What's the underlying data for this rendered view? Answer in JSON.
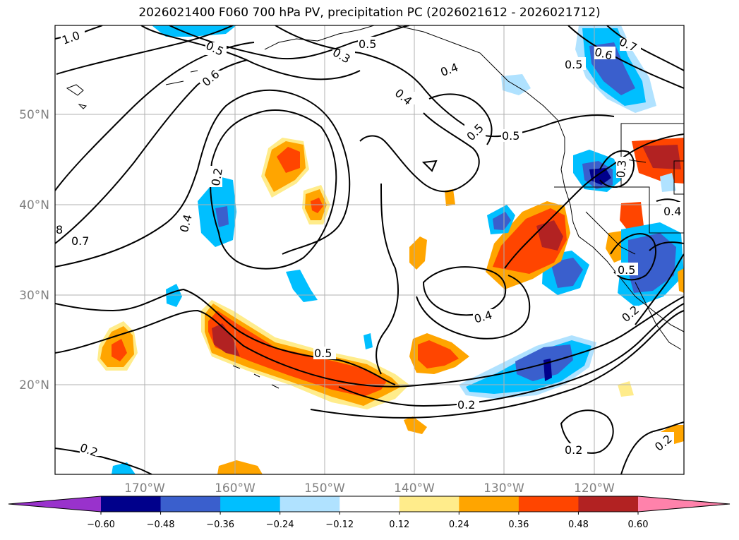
{
  "title": "2026021400 F060 700 hPa PV, precipitation PC (2026021612 - 2026021712)",
  "lat_labels": [
    "50°N",
    "40°N",
    "30°N",
    "20°N"
  ],
  "lon_labels": [
    "170°W",
    "160°W",
    "150°W",
    "140°W",
    "130°W",
    "120°W"
  ],
  "colorbar": {
    "ticks": [
      "−0.60",
      "−0.48",
      "−0.36",
      "−0.24",
      "−0.12",
      "0.12",
      "0.24",
      "0.36",
      "0.48",
      "0.60"
    ],
    "colors": {
      "under": "#9932cc",
      "bins": [
        "#00008b",
        "#3a5fcd",
        "#00bfff",
        "#b0e2ff",
        "#ffffff",
        "#ffec8b",
        "#ffa500",
        "#ff4500",
        "#b22222"
      ],
      "over": "#ff82ab"
    }
  },
  "contour_labels": [
    {
      "text": "1.0",
      "id": "c-1-0"
    },
    {
      "text": "0.5",
      "id": "c-0-5-a"
    },
    {
      "text": "0.6",
      "id": "c-0-6-a"
    },
    {
      "text": "0.3",
      "id": "c-0-3-a"
    },
    {
      "text": "0.5",
      "id": "c-0-5-b"
    },
    {
      "text": "0.4",
      "id": "c-0-4-a"
    },
    {
      "text": "0.4",
      "id": "c-0-4-b"
    },
    {
      "text": "0.5",
      "id": "c-0-5-c"
    },
    {
      "text": "0.5",
      "id": "c-0-5-d"
    },
    {
      "text": "0.6",
      "id": "c-0-6-b"
    },
    {
      "text": "0.5",
      "id": "c-0-5-e"
    },
    {
      "text": "0.7",
      "id": "c-0-7-a"
    },
    {
      "text": "0.2",
      "id": "c-0-2-a"
    },
    {
      "text": "0.4",
      "id": "c-0-4-c"
    },
    {
      "text": "8",
      "id": "c-8"
    },
    {
      "text": "0.7",
      "id": "c-0-7-b"
    },
    {
      "text": "0.4",
      "id": "c-0-4-d"
    },
    {
      "text": "0.5",
      "id": "c-0-5-f"
    },
    {
      "text": "0.2",
      "id": "c-0-2-b"
    },
    {
      "text": "0.2",
      "id": "c-0-2-c"
    },
    {
      "text": "0.2",
      "id": "c-0-2-d"
    },
    {
      "text": "0.4",
      "id": "c-0-4-e"
    },
    {
      "text": "0.3",
      "id": "c-0-3-b"
    },
    {
      "text": "0.5",
      "id": "c-0-5-g"
    },
    {
      "text": "0.2",
      "id": "c-0-2-e"
    },
    {
      "text": "0.2",
      "id": "c-0-2-f"
    }
  ]
}
